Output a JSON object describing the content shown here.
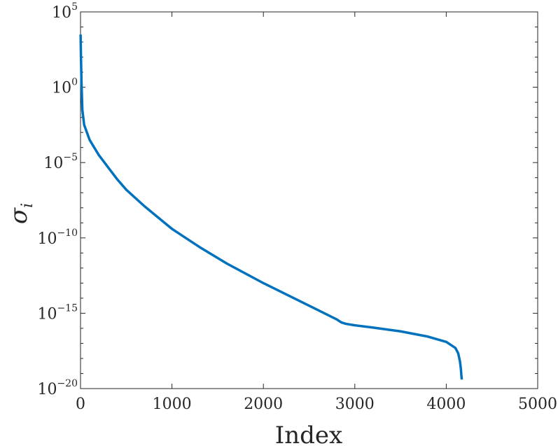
{
  "chart_data": {
    "type": "line",
    "title": "",
    "xlabel": "Index",
    "ylabel": {
      "base": "σ",
      "subscript": "i"
    },
    "xlim": [
      0,
      5000
    ],
    "ylim_log10": [
      -20,
      5
    ],
    "yscale": "log",
    "grid": false,
    "x_ticks": [
      "0",
      "1000",
      "2000",
      "3000",
      "4000",
      "5000"
    ],
    "y_ticks": [
      {
        "base": "10",
        "exp": "5"
      },
      {
        "base": "10",
        "exp": "0"
      },
      {
        "base": "10",
        "exp": "−5"
      },
      {
        "base": "10",
        "exp": "−10"
      },
      {
        "base": "10",
        "exp": "−15"
      },
      {
        "base": "10",
        "exp": "−20"
      }
    ],
    "x_tick_values": [
      0,
      1000,
      2000,
      3000,
      4000,
      5000
    ],
    "y_tick_exponents": [
      5,
      0,
      -5,
      -10,
      -15,
      -20
    ],
    "series": [
      {
        "color": "#0072BD",
        "points_x": [
          1,
          5,
          10,
          20,
          40,
          70,
          100,
          150,
          200,
          300,
          400,
          500,
          700,
          1000,
          1300,
          1600,
          2000,
          2300,
          2600,
          2800,
          2850,
          2900,
          3000,
          3200,
          3500,
          3800,
          4000,
          4100,
          4130,
          4150,
          4160,
          4165,
          4170
        ],
        "points_log10_y": [
          3.5,
          2.0,
          0.5,
          -1.5,
          -2.5,
          -3.0,
          -3.5,
          -4.0,
          -4.5,
          -5.3,
          -6.1,
          -6.8,
          -7.9,
          -9.4,
          -10.6,
          -11.7,
          -13.0,
          -13.9,
          -14.8,
          -15.4,
          -15.6,
          -15.7,
          -15.8,
          -15.95,
          -16.2,
          -16.55,
          -16.9,
          -17.3,
          -17.65,
          -18.2,
          -18.7,
          -19.1,
          -19.4
        ]
      }
    ]
  }
}
